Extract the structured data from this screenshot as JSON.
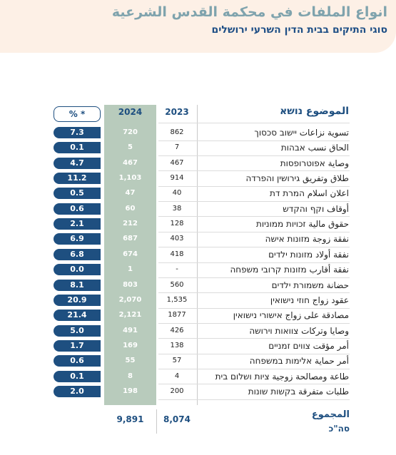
{
  "header": {
    "title": "انواع الملفات في محكمة القدس الشرعية",
    "subtitle": "סוגי התיקים בבית הדין השרעי ירושלים"
  },
  "table": {
    "columns": [
      "الموضوع נושא",
      "2023",
      "2024",
      "% *"
    ],
    "rows": [
      [
        "تسوية نزاعات יישוב סכסוך",
        "862",
        "720",
        "7.3"
      ],
      [
        "الحاق نسب אבהות",
        "7",
        "5",
        "0.1"
      ],
      [
        "وصاية אפוטרופסות",
        "467",
        "467",
        "4.7"
      ],
      [
        "طلاق وتفريق גירושין והפרדה",
        "914",
        "1,103",
        "11.2"
      ],
      [
        "اعلان اسلام המרת דת",
        "40",
        "47",
        "0.5"
      ],
      [
        "أوقاف וקף והקדש",
        "38",
        "60",
        "0.6"
      ],
      [
        "حقوق مالية זכויות ממוניות",
        "128",
        "212",
        "2.1"
      ],
      [
        "نفقة زوجة מזונות אישה",
        "403",
        "687",
        "6.9"
      ],
      [
        "نفقة أولاد מזונות ילדים",
        "418",
        "674",
        "6.8"
      ],
      [
        "نفقة أقارب מזונות קרובי משפחה",
        "-",
        "1",
        "0.0"
      ],
      [
        "حضانة משמורת ילדים",
        "560",
        "803",
        "8.1"
      ],
      [
        "عقود زواج חוזי נישואין",
        "1,535",
        "2,070",
        "20.9"
      ],
      [
        "مصادقة على زواج אישורי נישואין",
        "1877",
        "2,121",
        "21.4"
      ],
      [
        "وصايا وتركات צוואות וירושה",
        "426",
        "491",
        "5.0"
      ],
      [
        "أمر مؤقت צווים זמניים",
        "138",
        "169",
        "1.7"
      ],
      [
        "أمر حماية אלימות במשפחה",
        "57",
        "55",
        "0.6"
      ],
      [
        "طاعة ومصالحة زوجية ציות ושלום בית",
        "4",
        "8",
        "0.1"
      ],
      [
        "طلبات متفرقة בקשות שונות",
        "200",
        "198",
        "2.0"
      ]
    ],
    "total": {
      "label": "المجموع",
      "label_he": "סה\"כ",
      "y2023": "8,074",
      "y2024": "9,891"
    }
  }
}
